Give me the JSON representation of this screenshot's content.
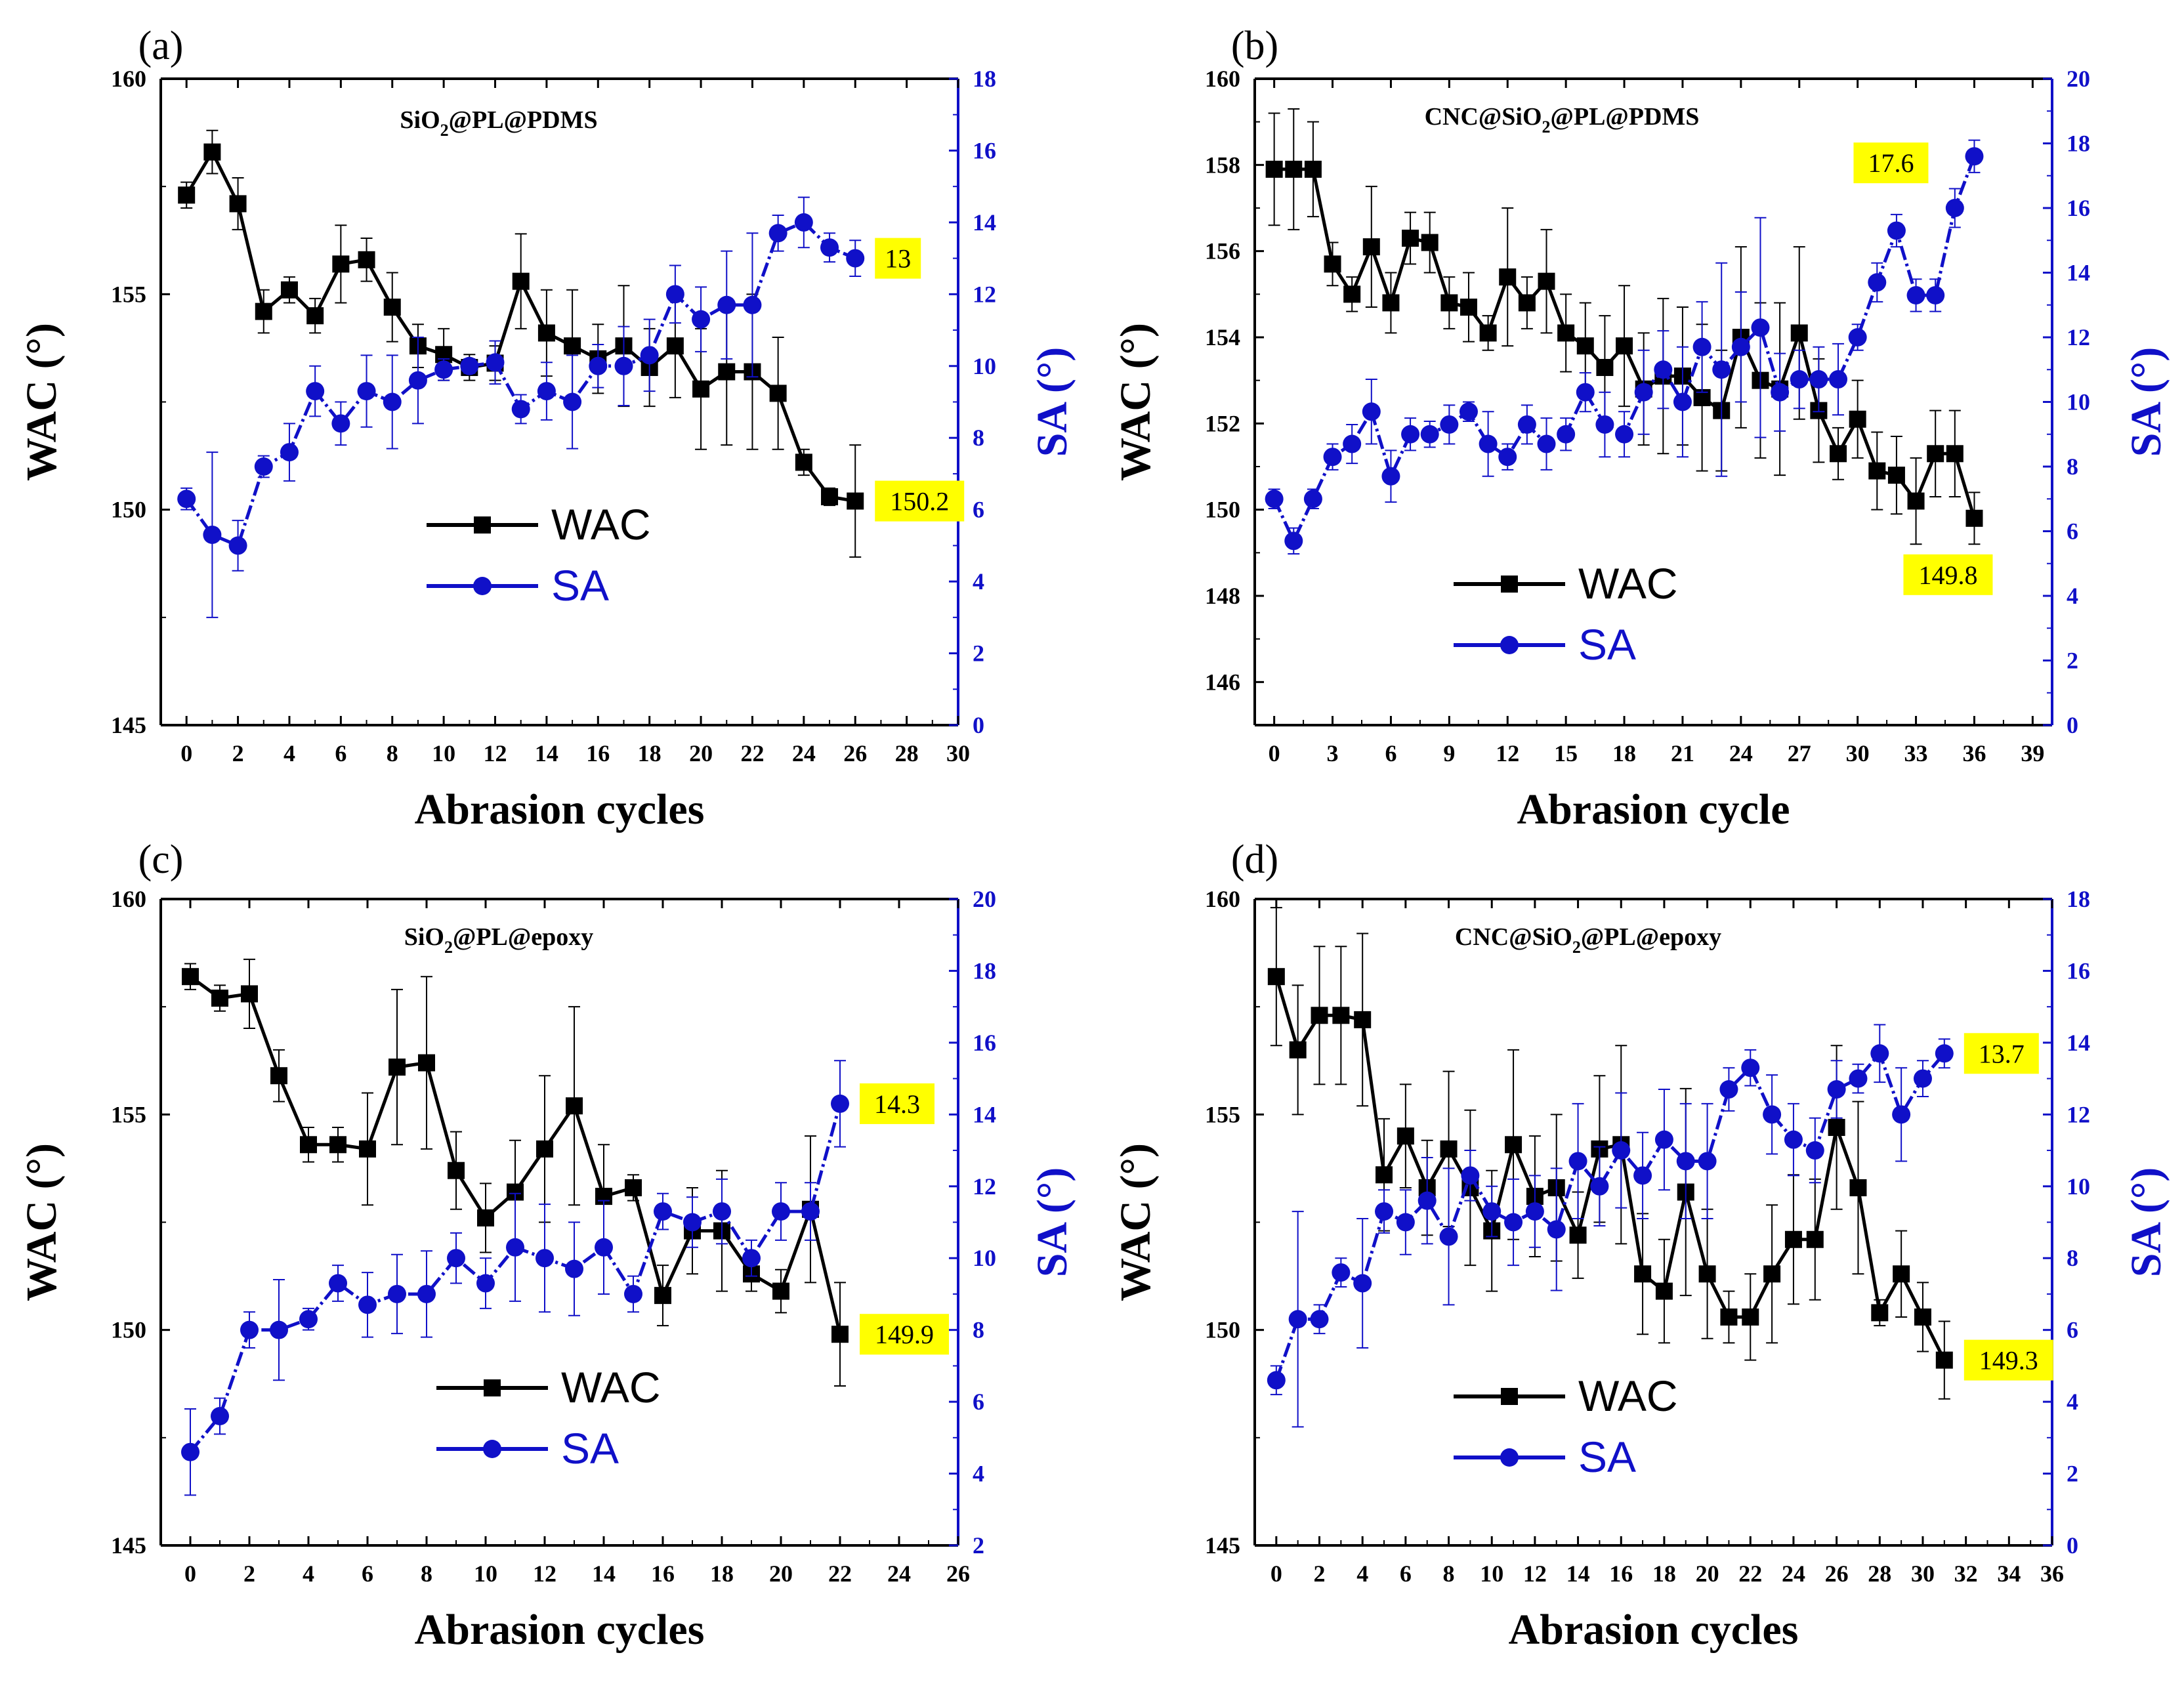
{
  "figure": {
    "colors": {
      "wac": "#000000",
      "sa": "#1010c8",
      "highlight": "#ffff00"
    }
  },
  "chart_data": [
    {
      "type": "line",
      "panel_label": "(a)",
      "sample": "SiO",
      "sample_sub": "2",
      "sample_rest": "@PL@PDMS",
      "xlabel": "Abrasion cycles",
      "ylabel_left": "WAC (°)",
      "ylabel_right": "SA (°)",
      "xlim": [
        -1,
        30
      ],
      "xticks": [
        0,
        2,
        4,
        6,
        8,
        10,
        12,
        14,
        16,
        18,
        20,
        22,
        24,
        26,
        28,
        30
      ],
      "ylim_left": [
        145,
        160
      ],
      "yticks_left": [
        145,
        150,
        155,
        160
      ],
      "ylim_right": [
        0,
        18
      ],
      "yticks_right": [
        0,
        2,
        4,
        6,
        8,
        10,
        12,
        14,
        16,
        18
      ],
      "legend": [
        "WAC",
        "SA"
      ],
      "series": [
        {
          "name": "WAC",
          "axis": "left",
          "x": [
            0,
            1,
            2,
            3,
            4,
            5,
            6,
            7,
            8,
            9,
            10,
            11,
            12,
            13,
            14,
            15,
            16,
            17,
            18,
            19,
            20,
            21,
            22,
            23,
            24,
            25,
            26
          ],
          "values": [
            157.3,
            158.3,
            157.1,
            154.6,
            155.1,
            154.5,
            155.7,
            155.8,
            154.7,
            153.8,
            153.6,
            153.3,
            153.4,
            155.3,
            154.1,
            153.8,
            153.5,
            153.8,
            153.3,
            153.8,
            152.8,
            153.2,
            153.2,
            152.7,
            151.1,
            150.3,
            150.2
          ],
          "errors": [
            0.3,
            0.5,
            0.6,
            0.5,
            0.3,
            0.4,
            0.9,
            0.5,
            0.8,
            0.5,
            0.6,
            0.3,
            0.4,
            1.1,
            1.0,
            1.3,
            0.8,
            1.4,
            0.9,
            1.2,
            1.4,
            1.7,
            1.8,
            1.3,
            0.3,
            0.2,
            1.3
          ]
        },
        {
          "name": "SA",
          "axis": "right",
          "x": [
            0,
            1,
            2,
            3,
            4,
            5,
            6,
            7,
            8,
            9,
            10,
            11,
            12,
            13,
            14,
            15,
            16,
            17,
            18,
            19,
            20,
            21,
            22,
            23,
            24,
            25,
            26
          ],
          "values": [
            6.3,
            5.3,
            5.0,
            7.2,
            7.6,
            9.3,
            8.4,
            9.3,
            9.0,
            9.6,
            9.9,
            10.0,
            10.1,
            8.8,
            9.3,
            9.0,
            10.0,
            10.0,
            10.3,
            12.0,
            11.3,
            11.7,
            11.7,
            13.7,
            14.0,
            13.3,
            13.0
          ],
          "errors": [
            0.3,
            2.3,
            0.7,
            0.3,
            0.8,
            0.7,
            0.6,
            1.0,
            1.3,
            1.2,
            0.3,
            0.2,
            0.6,
            0.4,
            0.8,
            1.3,
            0.6,
            1.1,
            1.0,
            0.8,
            0.9,
            1.5,
            2.0,
            0.5,
            0.7,
            0.4,
            0.5
          ]
        }
      ],
      "annotations": [
        {
          "text": "13",
          "series": "SA",
          "side": "right"
        },
        {
          "text": "150.2",
          "series": "WAC",
          "side": "right"
        }
      ]
    },
    {
      "type": "line",
      "panel_label": "(b)",
      "sample": "CNC@SiO",
      "sample_sub": "2",
      "sample_rest": "@PL@PDMS",
      "xlabel": "Abrasion cycle",
      "ylabel_left": "WAC (°)",
      "ylabel_right": "SA (°)",
      "xlim": [
        -1,
        40
      ],
      "xticks": [
        0,
        3,
        6,
        9,
        12,
        15,
        18,
        21,
        24,
        27,
        30,
        33,
        36,
        39
      ],
      "ylim_left": [
        145,
        160
      ],
      "yticks_left": [
        146,
        148,
        150,
        152,
        154,
        156,
        158,
        160
      ],
      "ylim_right": [
        0,
        20
      ],
      "yticks_right": [
        0,
        2,
        4,
        6,
        8,
        10,
        12,
        14,
        16,
        18,
        20
      ],
      "legend": [
        "WAC",
        "SA"
      ],
      "series": [
        {
          "name": "WAC",
          "axis": "left",
          "x": [
            0,
            1,
            2,
            3,
            4,
            5,
            6,
            7,
            8,
            9,
            10,
            11,
            12,
            13,
            14,
            15,
            16,
            17,
            18,
            19,
            20,
            21,
            22,
            23,
            24,
            25,
            26,
            27,
            28,
            29,
            30,
            31,
            32,
            33,
            34,
            35,
            36
          ],
          "values": [
            157.9,
            157.9,
            157.9,
            155.7,
            155.0,
            156.1,
            154.8,
            156.3,
            156.2,
            154.8,
            154.7,
            154.1,
            155.4,
            154.8,
            155.3,
            154.1,
            153.8,
            153.3,
            153.8,
            152.8,
            153.1,
            153.1,
            152.6,
            152.3,
            154.0,
            153.0,
            152.8,
            154.1,
            152.3,
            151.3,
            152.1,
            150.9,
            150.8,
            150.2,
            151.3,
            151.3,
            149.8
          ],
          "errors": [
            1.3,
            1.4,
            1.1,
            0.5,
            0.4,
            1.4,
            0.7,
            0.6,
            0.7,
            0.6,
            0.8,
            0.4,
            1.6,
            0.6,
            1.2,
            0.9,
            1.0,
            1.2,
            1.4,
            1.3,
            1.8,
            1.6,
            1.7,
            1.4,
            2.1,
            1.8,
            2.0,
            2.0,
            1.2,
            0.6,
            0.9,
            0.9,
            0.9,
            1.0,
            1.0,
            1.0,
            0.6
          ]
        },
        {
          "name": "SA",
          "axis": "right",
          "x": [
            0,
            1,
            2,
            3,
            4,
            5,
            6,
            7,
            8,
            9,
            10,
            11,
            12,
            13,
            14,
            15,
            16,
            17,
            18,
            19,
            20,
            21,
            22,
            23,
            24,
            25,
            26,
            27,
            28,
            29,
            30,
            31,
            32,
            33,
            34,
            35,
            36
          ],
          "values": [
            7.0,
            5.7,
            7.0,
            8.3,
            8.7,
            9.7,
            7.7,
            9.0,
            9.0,
            9.3,
            9.7,
            8.7,
            8.3,
            9.3,
            8.7,
            9.0,
            10.3,
            9.3,
            9.0,
            10.3,
            11.0,
            10.0,
            11.7,
            11.0,
            11.7,
            12.3,
            10.3,
            10.7,
            10.7,
            10.7,
            12.0,
            13.7,
            15.3,
            13.3,
            13.3,
            16.0,
            17.6
          ],
          "errors": [
            0.3,
            0.4,
            0.3,
            0.4,
            0.6,
            1.0,
            0.8,
            0.5,
            0.4,
            0.6,
            0.3,
            1.0,
            0.4,
            0.6,
            0.8,
            0.5,
            0.6,
            1.0,
            0.7,
            1.3,
            1.2,
            1.7,
            1.4,
            3.3,
            1.7,
            3.4,
            1.2,
            0.9,
            1.0,
            1.1,
            0.4,
            0.6,
            0.5,
            0.5,
            0.5,
            0.6,
            0.5
          ]
        }
      ],
      "annotations": [
        {
          "text": "17.6",
          "series": "SA",
          "side": "left"
        },
        {
          "text": "149.8",
          "series": "WAC",
          "side": "below"
        }
      ]
    },
    {
      "type": "line",
      "panel_label": "(c)",
      "sample": "SiO",
      "sample_sub": "2",
      "sample_rest": "@PL@epoxy",
      "xlabel": "Abrasion cycles",
      "ylabel_left": "WAC (°)",
      "ylabel_right": "SA (°)",
      "xlim": [
        -1,
        26
      ],
      "xticks": [
        0,
        2,
        4,
        6,
        8,
        10,
        12,
        14,
        16,
        18,
        20,
        22,
        24,
        26
      ],
      "ylim_left": [
        145,
        160
      ],
      "yticks_left": [
        145,
        150,
        155,
        160
      ],
      "ylim_right": [
        2,
        20
      ],
      "yticks_right": [
        2,
        4,
        6,
        8,
        10,
        12,
        14,
        16,
        18,
        20
      ],
      "legend": [
        "WAC",
        "SA"
      ],
      "series": [
        {
          "name": "WAC",
          "axis": "left",
          "x": [
            0,
            1,
            2,
            3,
            4,
            5,
            6,
            7,
            8,
            9,
            10,
            11,
            12,
            13,
            14,
            15,
            16,
            17,
            18,
            19,
            20,
            21,
            22
          ],
          "values": [
            158.2,
            157.7,
            157.8,
            155.9,
            154.3,
            154.3,
            154.2,
            156.1,
            156.2,
            153.7,
            152.6,
            153.2,
            154.2,
            155.2,
            153.1,
            153.3,
            150.8,
            152.3,
            152.3,
            151.3,
            150.9,
            152.8,
            149.9
          ],
          "errors": [
            0.3,
            0.3,
            0.8,
            0.6,
            0.4,
            0.4,
            1.3,
            1.8,
            2.0,
            0.9,
            0.8,
            1.2,
            1.7,
            2.3,
            1.2,
            0.3,
            0.7,
            1.0,
            1.4,
            0.4,
            0.5,
            1.7,
            1.2
          ]
        },
        {
          "name": "SA",
          "axis": "right",
          "x": [
            0,
            1,
            2,
            3,
            4,
            5,
            6,
            7,
            8,
            9,
            10,
            11,
            12,
            13,
            14,
            15,
            16,
            17,
            18,
            19,
            20,
            21,
            22
          ],
          "values": [
            4.6,
            5.6,
            8.0,
            8.0,
            8.3,
            9.3,
            8.7,
            9.0,
            9.0,
            10.0,
            9.3,
            10.3,
            10.0,
            9.7,
            10.3,
            9.0,
            11.3,
            11.0,
            11.3,
            10.0,
            11.3,
            11.3,
            14.3
          ],
          "errors": [
            1.2,
            0.5,
            0.5,
            1.4,
            0.3,
            0.5,
            0.9,
            1.1,
            1.2,
            0.7,
            0.7,
            1.5,
            1.5,
            1.3,
            1.3,
            0.5,
            0.5,
            0.7,
            0.9,
            0.5,
            0.8,
            0.8,
            1.2
          ]
        }
      ],
      "annotations": [
        {
          "text": "14.3",
          "series": "SA",
          "side": "right"
        },
        {
          "text": "149.9",
          "series": "WAC",
          "side": "right"
        }
      ]
    },
    {
      "type": "line",
      "panel_label": "(d)",
      "sample": "CNC@SiO",
      "sample_sub": "2",
      "sample_rest": "@PL@epoxy",
      "xlabel": "Abrasion cycles",
      "ylabel_left": "WAC (°)",
      "ylabel_right": "SA (°)",
      "xlim": [
        -1,
        36
      ],
      "xticks": [
        0,
        2,
        4,
        6,
        8,
        10,
        12,
        14,
        16,
        18,
        20,
        22,
        24,
        26,
        28,
        30,
        32,
        34,
        36
      ],
      "ylim_left": [
        145,
        160
      ],
      "yticks_left": [
        145,
        150,
        155,
        160
      ],
      "ylim_right": [
        0,
        18
      ],
      "yticks_right": [
        0,
        2,
        4,
        6,
        8,
        10,
        12,
        14,
        16,
        18
      ],
      "legend": [
        "WAC",
        "SA"
      ],
      "series": [
        {
          "name": "WAC",
          "axis": "left",
          "x": [
            0,
            1,
            2,
            3,
            4,
            5,
            6,
            7,
            8,
            9,
            10,
            11,
            12,
            13,
            14,
            15,
            16,
            17,
            18,
            19,
            20,
            21,
            22,
            23,
            24,
            25,
            26,
            27,
            28,
            29,
            30,
            31
          ],
          "values": [
            158.2,
            156.5,
            157.3,
            157.3,
            157.2,
            153.6,
            154.5,
            153.3,
            154.2,
            153.3,
            152.3,
            154.3,
            153.1,
            153.3,
            152.2,
            154.2,
            154.3,
            151.3,
            150.9,
            153.2,
            151.3,
            150.3,
            150.3,
            151.3,
            152.1,
            152.1,
            154.7,
            153.3,
            150.4,
            151.3,
            150.3,
            149.3
          ],
          "errors": [
            1.6,
            1.5,
            1.6,
            1.6,
            2.0,
            1.3,
            1.2,
            1.1,
            1.8,
            1.8,
            1.4,
            2.2,
            1.4,
            1.7,
            1.0,
            1.7,
            2.3,
            1.4,
            1.2,
            2.4,
            1.5,
            0.6,
            1.0,
            1.6,
            1.5,
            1.4,
            1.9,
            2.0,
            0.3,
            1.0,
            0.8,
            0.9
          ]
        },
        {
          "name": "SA",
          "axis": "right",
          "x": [
            0,
            1,
            2,
            3,
            4,
            5,
            6,
            7,
            8,
            9,
            10,
            11,
            12,
            13,
            14,
            15,
            16,
            17,
            18,
            19,
            20,
            21,
            22,
            23,
            24,
            25,
            26,
            27,
            28,
            29,
            30,
            31
          ],
          "values": [
            4.6,
            6.3,
            6.3,
            7.6,
            7.3,
            9.3,
            9.0,
            9.6,
            8.6,
            10.3,
            9.3,
            9.0,
            9.3,
            8.8,
            10.7,
            10.0,
            11.0,
            10.3,
            11.3,
            10.7,
            10.7,
            12.7,
            13.3,
            12.0,
            11.3,
            11.0,
            12.7,
            13.0,
            13.7,
            12.0,
            13.0,
            13.7
          ],
          "errors": [
            0.4,
            3.0,
            0.4,
            0.4,
            1.8,
            0.6,
            0.9,
            1.2,
            1.9,
            0.7,
            0.7,
            1.2,
            1.0,
            1.7,
            1.6,
            1.1,
            1.6,
            1.2,
            1.4,
            1.6,
            1.6,
            0.6,
            0.5,
            1.1,
            1.0,
            0.9,
            0.8,
            0.4,
            0.8,
            1.3,
            0.5,
            0.4
          ]
        }
      ],
      "annotations": [
        {
          "text": "13.7",
          "series": "SA",
          "side": "right"
        },
        {
          "text": "149.3",
          "series": "WAC",
          "side": "right"
        }
      ]
    }
  ]
}
